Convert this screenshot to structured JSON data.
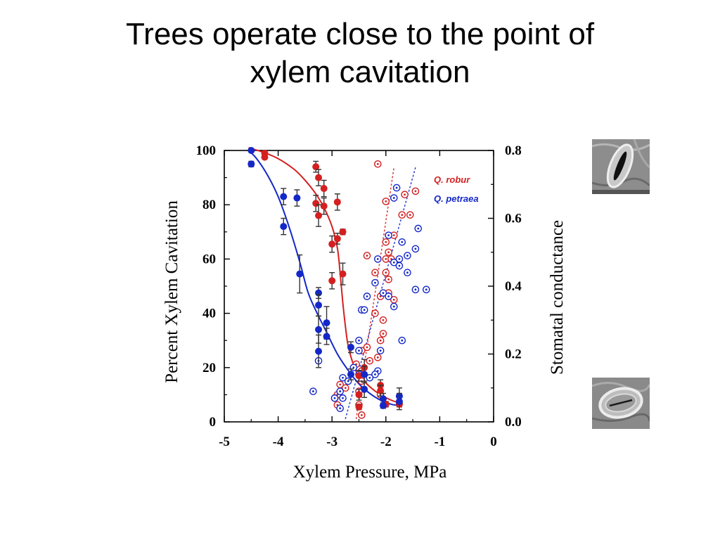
{
  "slide": {
    "title_line1": "Trees operate close to the point of",
    "title_line2": "xylem cavitation"
  },
  "chart_data": {
    "type": "scatter",
    "xlabel": "Xylem Pressure, MPa",
    "ylabel_left": "Percent Xylem Cavitation",
    "ylabel_right": "Stomatal conductance",
    "xlim": [
      -5,
      0
    ],
    "ylim_left": [
      0,
      100
    ],
    "ylim_right": [
      0,
      0.8
    ],
    "x_ticks": [
      "-5",
      "-4",
      "-3",
      "-2",
      "-1",
      "0"
    ],
    "y_left_ticks": [
      "0",
      "20",
      "40",
      "60",
      "80",
      "100"
    ],
    "y_right_ticks": [
      "0.0",
      "0.2",
      "0.4",
      "0.6",
      "0.8"
    ],
    "grid": false,
    "legend": {
      "position": "top-right",
      "entries": [
        "Q. robur",
        "Q. petraea"
      ]
    },
    "colors": {
      "robur": "#d42020",
      "petraea": "#1428c8"
    },
    "series": [
      {
        "name": "Q. robur",
        "kind": "cavitation",
        "axis": "left",
        "points": [
          {
            "x": -4.25,
            "y": 99,
            "err": 0.5
          },
          {
            "x": -4.25,
            "y": 97.5,
            "err": 0.5
          },
          {
            "x": -3.3,
            "y": 94,
            "err": 2
          },
          {
            "x": -3.25,
            "y": 90,
            "err": 3
          },
          {
            "x": -3.15,
            "y": 86,
            "err": 3
          },
          {
            "x": -3.3,
            "y": 80.5,
            "err": 3
          },
          {
            "x": -3.15,
            "y": 79.5,
            "err": 3
          },
          {
            "x": -2.9,
            "y": 81,
            "err": 3
          },
          {
            "x": -3.25,
            "y": 76,
            "err": 4
          },
          {
            "x": -2.8,
            "y": 70,
            "err": 1
          },
          {
            "x": -2.9,
            "y": 67.5,
            "err": 2
          },
          {
            "x": -3.0,
            "y": 65.5,
            "err": 3
          },
          {
            "x": -2.8,
            "y": 54.5,
            "err": 4
          },
          {
            "x": -3.0,
            "y": 52,
            "err": 3
          },
          {
            "x": -2.4,
            "y": 20,
            "err": 3
          },
          {
            "x": -2.5,
            "y": 17,
            "err": 2
          },
          {
            "x": -2.1,
            "y": 13.5,
            "err": 2
          },
          {
            "x": -2.1,
            "y": 11.5,
            "err": 2
          },
          {
            "x": -2.5,
            "y": 10,
            "err": 2
          },
          {
            "x": -2.0,
            "y": 6.5,
            "err": 1
          },
          {
            "x": -1.75,
            "y": 7,
            "err": 1
          },
          {
            "x": -1.75,
            "y": 6.5,
            "err": 1
          },
          {
            "x": -2.5,
            "y": 5.5,
            "err": 1
          }
        ],
        "fit_curve": [
          [
            -4.55,
            101
          ],
          [
            -4.3,
            99.5
          ],
          [
            -4.0,
            97
          ],
          [
            -3.7,
            93
          ],
          [
            -3.5,
            89
          ],
          [
            -3.3,
            84
          ],
          [
            -3.15,
            79
          ],
          [
            -3.0,
            72
          ],
          [
            -2.9,
            64
          ],
          [
            -2.85,
            55
          ],
          [
            -2.8,
            44
          ],
          [
            -2.75,
            35
          ],
          [
            -2.7,
            28
          ],
          [
            -2.6,
            21
          ],
          [
            -2.5,
            17
          ],
          [
            -2.3,
            13
          ],
          [
            -2.1,
            10
          ],
          [
            -1.9,
            8
          ],
          [
            -1.75,
            7
          ]
        ]
      },
      {
        "name": "Q. petraea",
        "kind": "cavitation",
        "axis": "left",
        "points": [
          {
            "x": -4.5,
            "y": 100,
            "err": 0.5
          },
          {
            "x": -4.5,
            "y": 95,
            "err": 1
          },
          {
            "x": -3.9,
            "y": 83,
            "err": 3
          },
          {
            "x": -3.65,
            "y": 82.5,
            "err": 3
          },
          {
            "x": -3.9,
            "y": 72,
            "err": 3
          },
          {
            "x": -3.6,
            "y": 54.5,
            "err": 7
          },
          {
            "x": -3.25,
            "y": 47.5,
            "err": 2
          },
          {
            "x": -3.25,
            "y": 43,
            "err": 4
          },
          {
            "x": -3.1,
            "y": 36.5,
            "err": 6
          },
          {
            "x": -3.25,
            "y": 34,
            "err": 5
          },
          {
            "x": -3.1,
            "y": 31.5,
            "err": 3
          },
          {
            "x": -2.65,
            "y": 27.5,
            "err": 2
          },
          {
            "x": -3.25,
            "y": 26,
            "err": 6
          },
          {
            "x": -2.65,
            "y": 17.5,
            "err": 2
          },
          {
            "x": -2.4,
            "y": 17.5,
            "err": 3
          },
          {
            "x": -2.4,
            "y": 12,
            "err": 3
          },
          {
            "x": -1.75,
            "y": 9.5,
            "err": 3
          },
          {
            "x": -2.05,
            "y": 8.5,
            "err": 2
          },
          {
            "x": -1.75,
            "y": 7.5,
            "err": 3
          },
          {
            "x": -2.05,
            "y": 6,
            "err": 1
          }
        ],
        "fit_curve": [
          [
            -4.55,
            100
          ],
          [
            -4.4,
            97
          ],
          [
            -4.2,
            91
          ],
          [
            -4.0,
            83
          ],
          [
            -3.8,
            72
          ],
          [
            -3.6,
            59
          ],
          [
            -3.45,
            48
          ],
          [
            -3.3,
            41
          ],
          [
            -3.1,
            33
          ],
          [
            -2.9,
            25
          ],
          [
            -2.7,
            19
          ],
          [
            -2.5,
            14
          ],
          [
            -2.3,
            10.5
          ],
          [
            -2.1,
            8
          ],
          [
            -1.9,
            6.5
          ],
          [
            -1.75,
            6
          ]
        ]
      },
      {
        "name": "Q. robur",
        "kind": "stomatal_conductance",
        "axis": "right",
        "points": [
          {
            "x": -2.15,
            "y": 0.76
          },
          {
            "x": -1.45,
            "y": 0.68
          },
          {
            "x": -1.65,
            "y": 0.67
          },
          {
            "x": -2.0,
            "y": 0.65
          },
          {
            "x": -1.55,
            "y": 0.61
          },
          {
            "x": -1.85,
            "y": 0.55
          },
          {
            "x": -2.0,
            "y": 0.53
          },
          {
            "x": -2.35,
            "y": 0.49
          },
          {
            "x": -1.95,
            "y": 0.5
          },
          {
            "x": -2.0,
            "y": 0.48
          },
          {
            "x": -1.9,
            "y": 0.48
          },
          {
            "x": -2.0,
            "y": 0.44
          },
          {
            "x": -1.95,
            "y": 0.42
          },
          {
            "x": -1.95,
            "y": 0.38
          },
          {
            "x": -1.85,
            "y": 0.36
          },
          {
            "x": -2.1,
            "y": 0.37
          },
          {
            "x": -2.2,
            "y": 0.32
          },
          {
            "x": -2.05,
            "y": 0.3
          },
          {
            "x": -2.05,
            "y": 0.26
          },
          {
            "x": -2.1,
            "y": 0.24
          },
          {
            "x": -2.35,
            "y": 0.22
          },
          {
            "x": -2.45,
            "y": 0.21
          },
          {
            "x": -2.15,
            "y": 0.19
          },
          {
            "x": -2.3,
            "y": 0.18
          },
          {
            "x": -2.55,
            "y": 0.17
          },
          {
            "x": -2.45,
            "y": 0.12
          },
          {
            "x": -2.85,
            "y": 0.11
          },
          {
            "x": -2.75,
            "y": 0.1
          },
          {
            "x": -2.5,
            "y": 0.09
          },
          {
            "x": -2.9,
            "y": 0.08
          },
          {
            "x": -2.95,
            "y": 0.07
          },
          {
            "x": -2.5,
            "y": 0.05
          },
          {
            "x": -2.45,
            "y": 0.02
          },
          {
            "x": -2.9,
            "y": 0.05
          },
          {
            "x": -2.1,
            "y": 0.08
          },
          {
            "x": -2.45,
            "y": 0.15
          },
          {
            "x": -2.2,
            "y": 0.44
          },
          {
            "x": -1.7,
            "y": 0.61
          }
        ],
        "trend_line": [
          [
            -2.55,
            0.01
          ],
          [
            -1.85,
            0.75
          ]
        ]
      },
      {
        "name": "Q. petraea",
        "kind": "stomatal_conductance",
        "axis": "right",
        "points": [
          {
            "x": -1.8,
            "y": 0.69
          },
          {
            "x": -1.85,
            "y": 0.66
          },
          {
            "x": -1.4,
            "y": 0.57
          },
          {
            "x": -1.95,
            "y": 0.55
          },
          {
            "x": -1.7,
            "y": 0.53
          },
          {
            "x": -1.45,
            "y": 0.51
          },
          {
            "x": -1.6,
            "y": 0.49
          },
          {
            "x": -2.15,
            "y": 0.48
          },
          {
            "x": -1.85,
            "y": 0.47
          },
          {
            "x": -1.75,
            "y": 0.48
          },
          {
            "x": -1.75,
            "y": 0.46
          },
          {
            "x": -1.6,
            "y": 0.44
          },
          {
            "x": -1.25,
            "y": 0.39
          },
          {
            "x": -1.45,
            "y": 0.39
          },
          {
            "x": -2.2,
            "y": 0.41
          },
          {
            "x": -2.05,
            "y": 0.38
          },
          {
            "x": -1.95,
            "y": 0.37
          },
          {
            "x": -2.35,
            "y": 0.37
          },
          {
            "x": -1.85,
            "y": 0.34
          },
          {
            "x": -2.45,
            "y": 0.33
          },
          {
            "x": -2.4,
            "y": 0.33
          },
          {
            "x": -2.5,
            "y": 0.24
          },
          {
            "x": -2.5,
            "y": 0.21
          },
          {
            "x": -2.1,
            "y": 0.21
          },
          {
            "x": -2.6,
            "y": 0.16
          },
          {
            "x": -2.5,
            "y": 0.14
          },
          {
            "x": -2.15,
            "y": 0.15
          },
          {
            "x": -2.2,
            "y": 0.14
          },
          {
            "x": -2.3,
            "y": 0.13
          },
          {
            "x": -1.7,
            "y": 0.24
          },
          {
            "x": -2.7,
            "y": 0.12
          },
          {
            "x": -2.8,
            "y": 0.13
          },
          {
            "x": -3.35,
            "y": 0.09
          },
          {
            "x": -2.85,
            "y": 0.09
          },
          {
            "x": -3.25,
            "y": 0.18
          },
          {
            "x": -2.8,
            "y": 0.07
          },
          {
            "x": -2.95,
            "y": 0.07
          },
          {
            "x": -2.85,
            "y": 0.04
          }
        ],
        "trend_line": [
          [
            -2.75,
            0.01
          ],
          [
            -1.45,
            0.75
          ]
        ]
      }
    ]
  },
  "images": {
    "top_icon": "open-stoma-micrograph",
    "bottom_icon": "closed-stoma-micrograph"
  }
}
